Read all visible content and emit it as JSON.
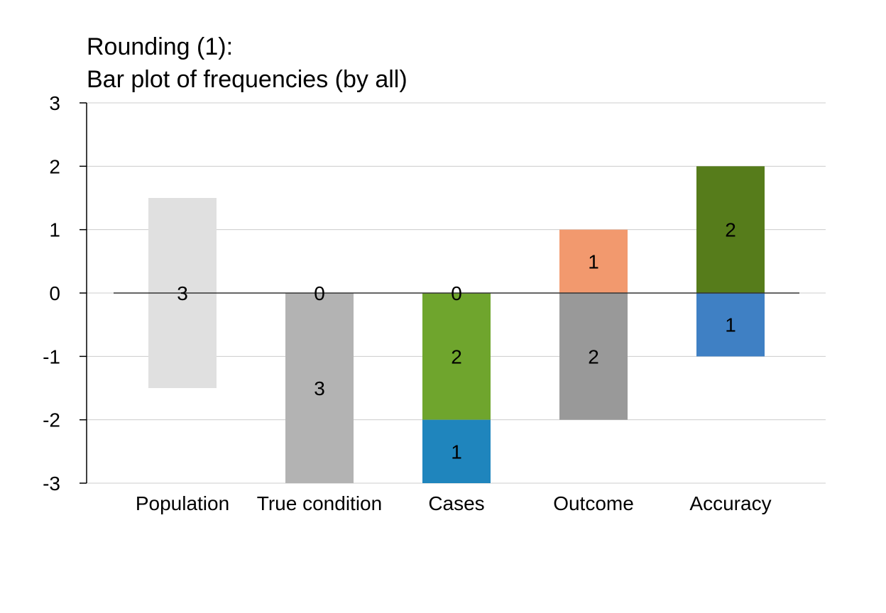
{
  "chart_data": {
    "type": "bar",
    "title_lines": [
      "Rounding (1):",
      "Bar plot of frequencies (by all)"
    ],
    "categories": [
      "Population",
      "True condition",
      "Cases",
      "Outcome",
      "Accuracy"
    ],
    "ylim": [
      -3,
      3
    ],
    "yticks": [
      3,
      2,
      1,
      0,
      -1,
      -2,
      -3
    ],
    "grid": true,
    "segments": [
      {
        "category": "Population",
        "y0": -1.5,
        "y1": 1.5,
        "label": "3",
        "color": "#e0e0e0"
      },
      {
        "category": "True condition",
        "y0": 0,
        "y1": 0,
        "label": "0",
        "color": "#b3b3b3"
      },
      {
        "category": "True condition",
        "y0": -3,
        "y1": 0,
        "label": "3",
        "color": "#b3b3b3"
      },
      {
        "category": "Cases",
        "y0": 0,
        "y1": 0,
        "label": "0",
        "color": "#6fa52d"
      },
      {
        "category": "Cases",
        "y0": -2,
        "y1": 0,
        "label": "2",
        "color": "#6fa52d"
      },
      {
        "category": "Cases",
        "y0": -3,
        "y1": -2,
        "label": "1",
        "color": "#1f85bd"
      },
      {
        "category": "Outcome",
        "y0": 0,
        "y1": 1,
        "label": "1",
        "color": "#f2996e"
      },
      {
        "category": "Outcome",
        "y0": -2,
        "y1": 0,
        "label": "2",
        "color": "#999999"
      },
      {
        "category": "Accuracy",
        "y0": 0,
        "y1": 2,
        "label": "2",
        "color": "#567c1b"
      },
      {
        "category": "Accuracy",
        "y0": -1,
        "y1": 0,
        "label": "1",
        "color": "#3f80c4"
      }
    ],
    "colors": {
      "grid": "#cccccc",
      "axis": "#000000",
      "zero_line": "#333333"
    }
  }
}
